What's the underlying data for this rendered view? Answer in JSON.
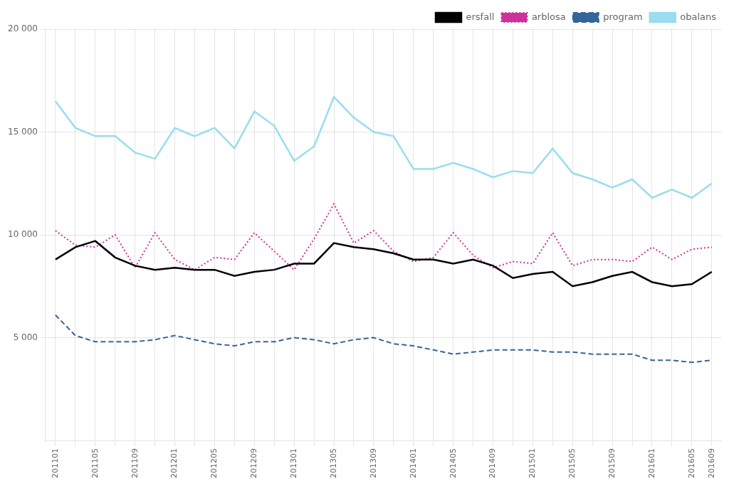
{
  "chart_data": {
    "type": "line",
    "categories": [
      "201101",
      null,
      "201105",
      null,
      "201109",
      null,
      "201201",
      null,
      "201205",
      null,
      "201209",
      null,
      "201301",
      null,
      "201305",
      null,
      "201309",
      null,
      "201401",
      null,
      "201405",
      null,
      "201409",
      null,
      "201501",
      null,
      "201505",
      null,
      "201509",
      null,
      "201601",
      null,
      "201605",
      "201609"
    ],
    "series": [
      {
        "name": "ersfall",
        "color": "#000000",
        "line_style": "solid",
        "values": [
          8800,
          9400,
          9700,
          8900,
          8500,
          8300,
          8400,
          8300,
          8300,
          8000,
          8200,
          8300,
          8600,
          8600,
          9600,
          9400,
          9300,
          9100,
          8800,
          8800,
          8600,
          8800,
          8500,
          7900,
          8100,
          8200,
          7500,
          7700,
          8000,
          8200,
          7700,
          7500,
          7600,
          8200
        ]
      },
      {
        "name": "arblosa",
        "color": "#cc3399",
        "line_style": "dotted",
        "values": [
          10200,
          9500,
          9400,
          10000,
          8400,
          10100,
          8800,
          8300,
          8900,
          8800,
          10100,
          9200,
          8300,
          9800,
          11500,
          9600,
          10200,
          9200,
          8700,
          8900,
          10100,
          9000,
          8400,
          8700,
          8600,
          10100,
          8500,
          8800,
          8800,
          8700,
          9400,
          8800,
          9300,
          9400
        ]
      },
      {
        "name": "program",
        "color": "#336699",
        "line_style": "dashed",
        "values": [
          6100,
          5100,
          4800,
          4800,
          4800,
          4900,
          5100,
          4900,
          4700,
          4600,
          4800,
          4800,
          5000,
          4900,
          4700,
          4900,
          5000,
          4700,
          4600,
          4400,
          4200,
          4300,
          4400,
          4400,
          4400,
          4300,
          4300,
          4200,
          4200,
          4200,
          3900,
          3900,
          3800,
          3900
        ]
      },
      {
        "name": "obalans",
        "color": "#99ddee",
        "line_style": "solid",
        "values": [
          16500,
          15200,
          14800,
          14800,
          14000,
          13700,
          15200,
          14800,
          15200,
          14200,
          16000,
          15300,
          13600,
          14300,
          16700,
          15700,
          15000,
          14800,
          13200,
          13200,
          13500,
          13200,
          12800,
          13100,
          13000,
          14200,
          13000,
          12700,
          12300,
          12700,
          11800,
          12200,
          11800,
          12500
        ]
      }
    ],
    "ylim": [
      0,
      20000
    ],
    "yticks": [
      {
        "value": 5000,
        "label": "5 000"
      },
      {
        "value": 10000,
        "label": "10 000"
      },
      {
        "value": 15000,
        "label": "15 000"
      },
      {
        "value": 20000,
        "label": "20 000"
      }
    ],
    "grid": true,
    "legend": "upper right"
  }
}
